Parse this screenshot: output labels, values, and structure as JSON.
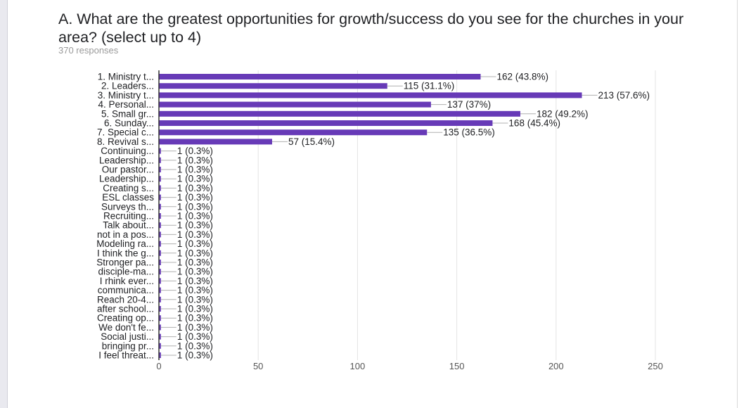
{
  "header": {
    "title": "A. What are the greatest opportunities for growth/success do you see for the churches in your area? (select up to 4)",
    "responses": "370 responses"
  },
  "colors": {
    "bar": "#673ab7",
    "grid": "#e3e3e3",
    "axis": "#333333",
    "leader": "#b0b0b0"
  },
  "chart_data": {
    "type": "bar",
    "orientation": "horizontal",
    "title": "A. What are the greatest opportunities for growth/success do you see for the churches in your area? (select up to 4)",
    "xlabel": "",
    "ylabel": "",
    "xlim": [
      0,
      250
    ],
    "xticks": [
      0,
      50,
      100,
      150,
      200,
      250
    ],
    "grid": true,
    "legend": "none",
    "categories": [
      "1. Ministry t...",
      "2. Leaders...",
      "3. Ministry t...",
      "4. Personal...",
      "5. Small gr...",
      "6. Sunday...",
      "7. Special c...",
      "8. Revival s...",
      "Continuing...",
      "Leadership...",
      "Our pastor...",
      "Leadership...",
      "Creating s...",
      "ESL classes",
      "Surveys th...",
      "Recruiting...",
      "Talk about...",
      "not in a pos...",
      "Modeling ra...",
      "I think the g...",
      "Stronger pa...",
      "disciple-ma...",
      "I rhink ever...",
      "communica...",
      "Reach 20-4...",
      "after school...",
      "Creating op...",
      "We don't fe...",
      "Social justi...",
      "bringing pr...",
      "I feel threat..."
    ],
    "values": [
      162,
      115,
      213,
      137,
      182,
      168,
      135,
      57,
      1,
      1,
      1,
      1,
      1,
      1,
      1,
      1,
      1,
      1,
      1,
      1,
      1,
      1,
      1,
      1,
      1,
      1,
      1,
      1,
      1,
      1,
      1
    ],
    "value_labels": [
      "162 (43.8%)",
      "115 (31.1%)",
      "213 (57.6%)",
      "137 (37%)",
      "182 (49.2%)",
      "168 (45.4%)",
      "135 (36.5%)",
      "57 (15.4%)",
      "1 (0.3%)",
      "1 (0.3%)",
      "1 (0.3%)",
      "1 (0.3%)",
      "1 (0.3%)",
      "1 (0.3%)",
      "1 (0.3%)",
      "1 (0.3%)",
      "1 (0.3%)",
      "1 (0.3%)",
      "1 (0.3%)",
      "1 (0.3%)",
      "1 (0.3%)",
      "1 (0.3%)",
      "1 (0.3%)",
      "1 (0.3%)",
      "1 (0.3%)",
      "1 (0.3%)",
      "1 (0.3%)",
      "1 (0.3%)",
      "1 (0.3%)",
      "1 (0.3%)",
      "1 (0.3%)"
    ]
  }
}
